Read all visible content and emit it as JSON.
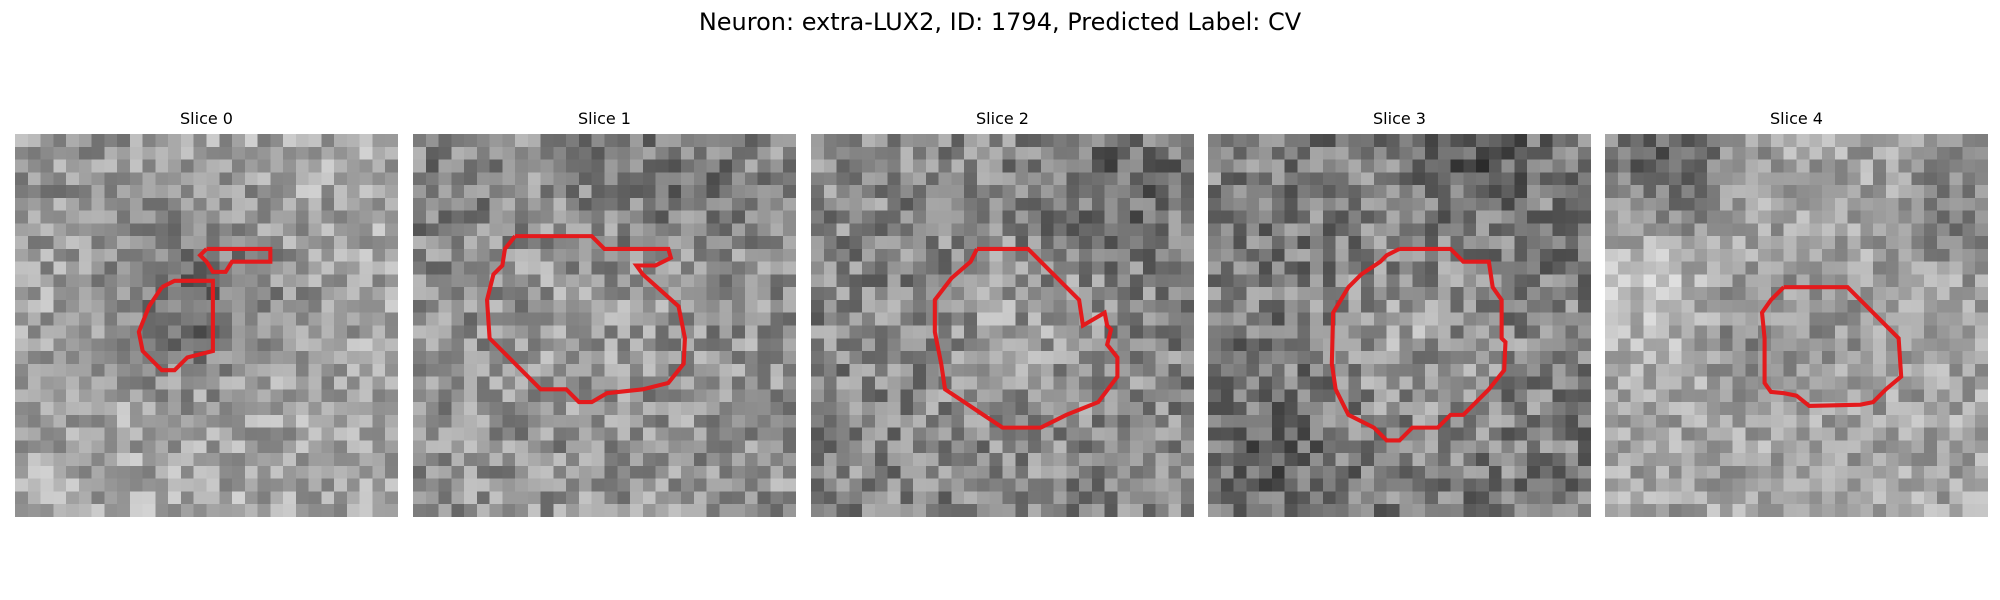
{
  "figure": {
    "title": "Neuron: extra-LUX2, ID: 1794, Predicted Label: CV"
  },
  "panels": [
    {
      "title": "Slice 0",
      "image": "grayscale-noise-patch-with-red-outline",
      "outline_color": "#e41a1c"
    },
    {
      "title": "Slice 1",
      "image": "grayscale-noise-patch-with-red-outline",
      "outline_color": "#e41a1c"
    },
    {
      "title": "Slice 2",
      "image": "grayscale-noise-patch-with-red-outline",
      "outline_color": "#e41a1c"
    },
    {
      "title": "Slice 3",
      "image": "grayscale-noise-patch-with-red-outline",
      "outline_color": "#e41a1c"
    },
    {
      "title": "Slice 4",
      "image": "grayscale-noise-patch-with-red-outline",
      "outline_color": "#e41a1c"
    }
  ]
}
